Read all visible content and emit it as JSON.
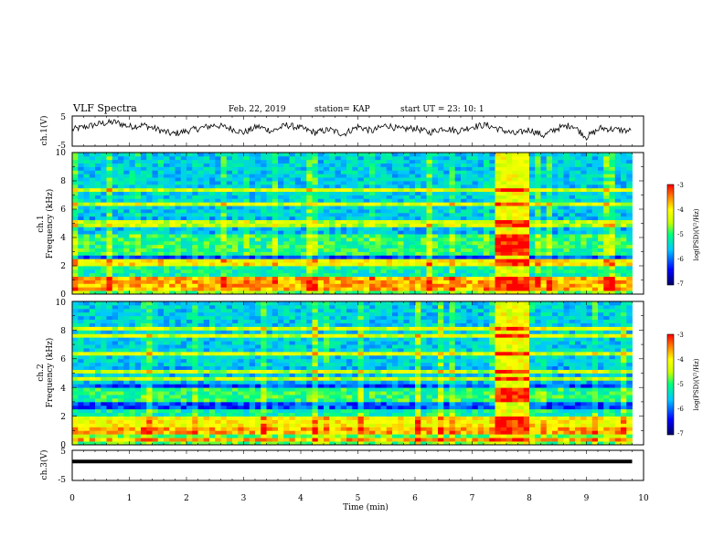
{
  "header": {
    "title": "VLF Spectra",
    "date": "Feb. 22, 2019",
    "station": "station= KAP",
    "start": "start  UT =   23: 10: 1"
  },
  "chart_data": [
    {
      "type": "line",
      "name": "ch1-waveform",
      "ylabel": "ch.1(V)",
      "ylim": [
        -5,
        5
      ],
      "yticks": [
        "5",
        "-5"
      ],
      "xlim": [
        0,
        10
      ],
      "x": [
        0,
        0.25,
        0.5,
        0.75,
        1,
        1.25,
        1.5,
        1.75,
        2,
        2.25,
        2.5,
        2.75,
        3,
        3.25,
        3.5,
        3.75,
        4,
        4.25,
        4.5,
        4.75,
        5,
        5.25,
        5.5,
        5.75,
        6,
        6.25,
        6.5,
        6.75,
        7,
        7.25,
        7.5,
        7.75,
        8,
        8.25,
        8.5,
        8.75,
        9,
        9.25,
        9.5,
        9.8
      ],
      "y": [
        0.5,
        1.5,
        2.5,
        3.0,
        1.5,
        2.0,
        0.5,
        -1.0,
        0.0,
        1.0,
        2.0,
        1.0,
        -0.5,
        1.5,
        0.0,
        2.0,
        1.0,
        -0.5,
        0.5,
        -1.0,
        1.5,
        0.0,
        2.0,
        0.5,
        1.0,
        -0.5,
        1.0,
        0.0,
        1.5,
        2.0,
        0.5,
        -1.0,
        0.5,
        -1.5,
        1.0,
        2.0,
        -2.0,
        1.0,
        0.5,
        0.0
      ]
    },
    {
      "type": "heatmap",
      "name": "ch1-spectrogram",
      "ylabel": "ch.1\nFrequency (kHz)",
      "ylabel_lines": [
        "ch.1",
        "Frequency (kHz)"
      ],
      "yticks": [
        "0",
        "2",
        "4",
        "6",
        "8",
        "10"
      ],
      "ylim_khz": [
        0,
        10
      ],
      "xlim_min": [
        0,
        10
      ],
      "data_end_min": 9.8,
      "colorbar": {
        "label": "log(PSD)(V²/Hz)",
        "ticks": [
          "-3",
          "-4",
          "-5",
          "-6",
          "-7"
        ],
        "range": [
          -7,
          -3
        ]
      },
      "strong_bands_khz": [
        0.5,
        1.0,
        2.2,
        2.4,
        3.0,
        3.5,
        4.0,
        4.8,
        5.1,
        6.4,
        7.4
      ],
      "burst_window_min": [
        7.4,
        8.0
      ]
    },
    {
      "type": "heatmap",
      "name": "ch2-spectrogram",
      "ylabel": "ch.2\nFrequency (kHz)",
      "ylabel_lines": [
        "ch.2",
        "Frequency (kHz)"
      ],
      "yticks": [
        "0",
        "2",
        "4",
        "6",
        "8",
        "10"
      ],
      "ylim_khz": [
        0,
        10
      ],
      "xlim_min": [
        0,
        10
      ],
      "data_end_min": 9.8,
      "colorbar": {
        "label": "log(PSD)(V²/Hz)",
        "ticks": [
          "-3",
          "-4",
          "-5",
          "-6",
          "-7"
        ],
        "range": [
          -7,
          -3
        ]
      },
      "strong_bands_khz": [
        0.4,
        1.0,
        1.5,
        1.9,
        3.1,
        3.5,
        3.8,
        4.6,
        5.2,
        6.3,
        7.6,
        8.2
      ],
      "burst_window_min": [
        7.4,
        8.0
      ]
    },
    {
      "type": "line",
      "name": "ch3-waveform",
      "ylabel": "ch.3(V)",
      "ylim": [
        -5,
        5
      ],
      "yticks": [
        "5",
        "-5"
      ],
      "xlim": [
        0,
        10
      ],
      "xlabel": "Time (min)",
      "xticks": [
        "0",
        "1",
        "2",
        "3",
        "4",
        "5",
        "6",
        "7",
        "8",
        "9",
        "10"
      ],
      "x": [
        0,
        9.8
      ],
      "y": [
        1.3,
        1.3
      ]
    }
  ]
}
